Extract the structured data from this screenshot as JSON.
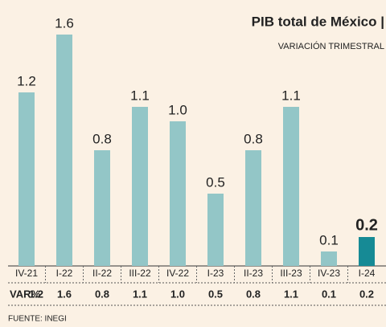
{
  "chart_data": {
    "type": "bar",
    "title": "PIB total de México |",
    "subtitle": "VARIACIÓN TRIMESTRAL",
    "categories": [
      "IV-21",
      "I-22",
      "II-22",
      "III-22",
      "IV-22",
      "I-23",
      "II-23",
      "III-23",
      "IV-23",
      "I-24"
    ],
    "values": [
      1.2,
      1.6,
      0.8,
      1.1,
      1.0,
      0.5,
      0.8,
      1.1,
      0.1,
      0.2
    ],
    "value_labels": [
      "1.2",
      "1.6",
      "0.8",
      "1.1",
      "1.0",
      "0.5",
      "0.8",
      "1.1",
      "0.1",
      "0.2"
    ],
    "colors": [
      "#93c6c7",
      "#93c6c7",
      "#93c6c7",
      "#93c6c7",
      "#93c6c7",
      "#93c6c7",
      "#93c6c7",
      "#93c6c7",
      "#93c6c7",
      "#168a95"
    ],
    "table_row_label": "VAR%",
    "source": "FUENTE: INEGI",
    "ylim": [
      0,
      1.6
    ]
  }
}
